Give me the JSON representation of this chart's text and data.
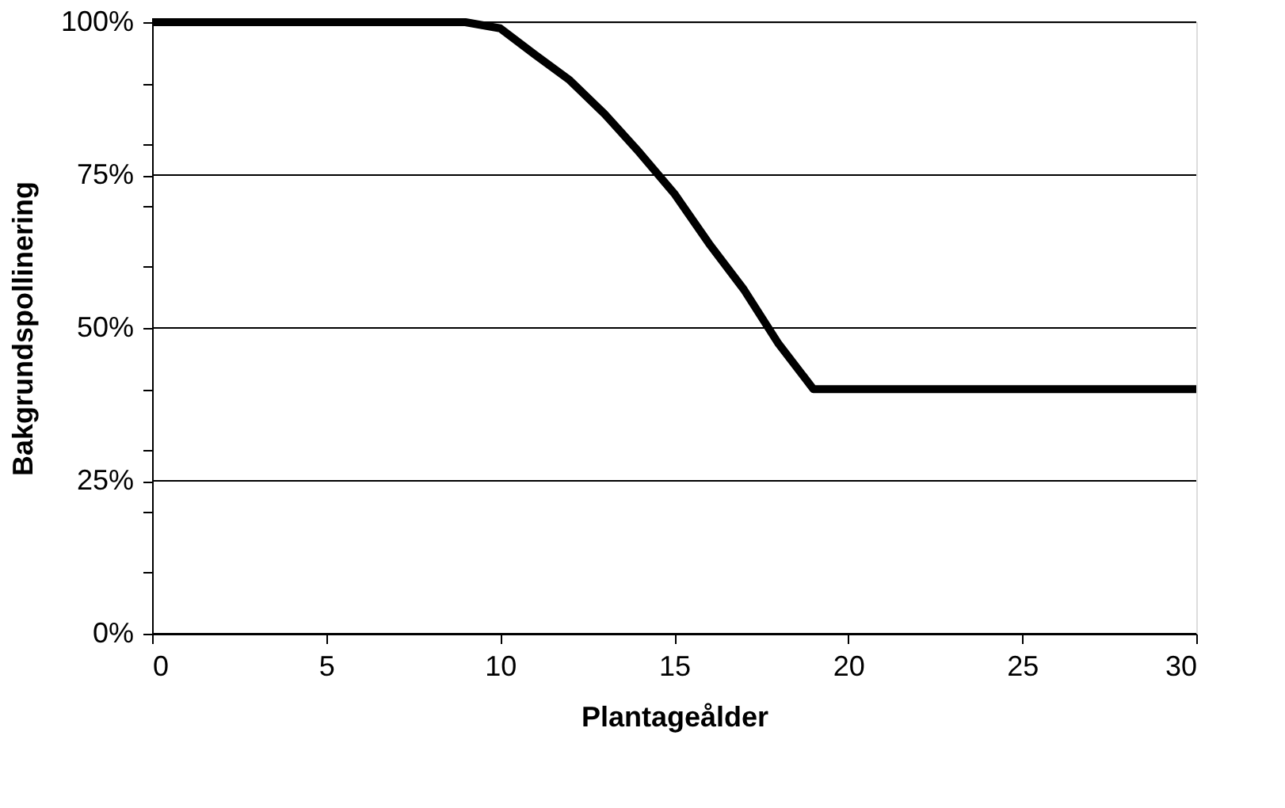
{
  "chart_data": {
    "type": "line",
    "xlabel": "Plantageålder",
    "ylabel": "Bakgrundspollinering",
    "x": [
      0,
      9,
      10,
      11,
      12,
      13,
      14,
      15,
      16,
      17,
      18,
      19,
      30
    ],
    "series": [
      {
        "color": "#000000",
        "values": [
          100,
          100,
          99,
          94.7,
          90.5,
          85,
          78.7,
          72,
          63.8,
          56.3,
          47.4,
          40,
          40
        ]
      }
    ],
    "xlim": [
      0,
      30
    ],
    "xticks": [
      0,
      5,
      10,
      15,
      20,
      25,
      30
    ],
    "ylim": [
      0,
      100
    ],
    "yticks": [
      {
        "value": 0,
        "label": "0%"
      },
      {
        "value": 10,
        "label": null
      },
      {
        "value": 20,
        "label": null
      },
      {
        "value": 25,
        "label": "25%"
      },
      {
        "value": 30,
        "label": null
      },
      {
        "value": 40,
        "label": null
      },
      {
        "value": 50,
        "label": "50%"
      },
      {
        "value": 60,
        "label": null
      },
      {
        "value": 70,
        "label": null
      },
      {
        "value": 75,
        "label": "75%"
      },
      {
        "value": 80,
        "label": null
      },
      {
        "value": 90,
        "label": null
      },
      {
        "value": 100,
        "label": "100%"
      }
    ],
    "grid": "y",
    "marker": "none",
    "line_style": "solid"
  }
}
